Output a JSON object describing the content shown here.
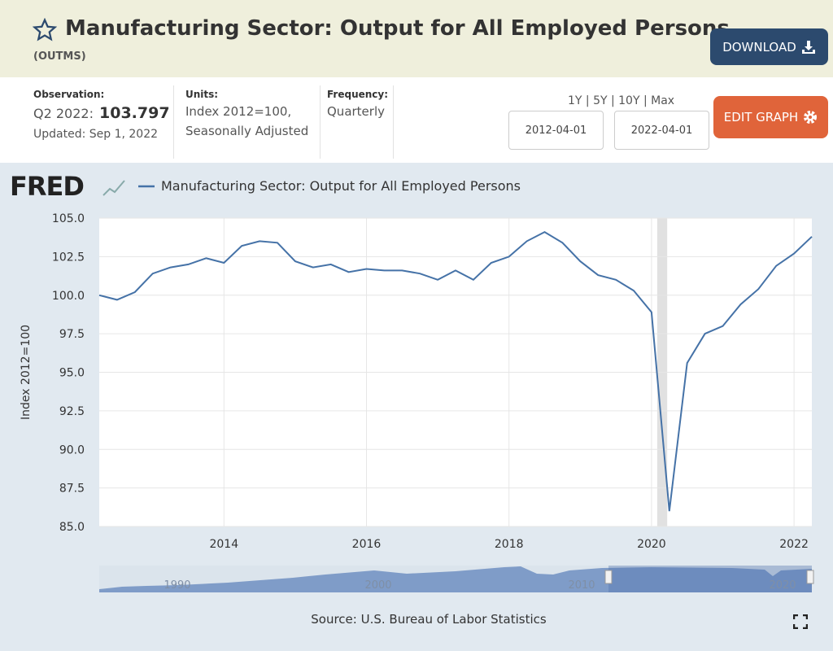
{
  "header": {
    "title": "Manufacturing Sector: Output for All Employed Persons",
    "series_id": "(OUTMS)",
    "download": "DOWNLOAD"
  },
  "info": {
    "observation_label": "Observation:",
    "observation_period": "Q2 2022:",
    "observation_value": "103.797",
    "updated": "Updated: Sep 1, 2022",
    "units_label": "Units:",
    "units_line1": "Index 2012=100,",
    "units_line2": "Seasonally Adjusted",
    "frequency_label": "Frequency:",
    "frequency": "Quarterly",
    "ranges": "1Y | 5Y | 10Y | Max",
    "start_date": "2012-04-01",
    "end_date": "2022-04-01",
    "edit_graph": "EDIT GRAPH"
  },
  "logo": "FRED",
  "chart_data": {
    "type": "line",
    "y_label": "Index 2012=100",
    "x": [
      2012.25,
      2012.5,
      2012.75,
      2013,
      2013.25,
      2013.5,
      2013.75,
      2014,
      2014.25,
      2014.5,
      2014.75,
      2015,
      2015.25,
      2015.5,
      2015.75,
      2016,
      2016.25,
      2016.5,
      2016.75,
      2017,
      2017.25,
      2017.5,
      2017.75,
      2018,
      2018.25,
      2018.5,
      2018.75,
      2019,
      2019.25,
      2019.5,
      2019.75,
      2020,
      2020.25,
      2020.5,
      2020.75,
      2021,
      2021.25,
      2021.5,
      2021.75,
      2022,
      2022.25
    ],
    "series": [
      {
        "name": "Manufacturing Sector: Output for All Employed Persons",
        "color": "#4572a7",
        "values": [
          100.0,
          99.7,
          100.2,
          101.4,
          101.8,
          102.0,
          102.4,
          102.1,
          103.2,
          103.5,
          103.4,
          102.2,
          101.8,
          102.0,
          101.5,
          101.7,
          101.6,
          101.6,
          101.4,
          101.0,
          101.6,
          101.0,
          102.1,
          102.5,
          103.5,
          104.1,
          103.4,
          102.2,
          101.3,
          101.0,
          100.3,
          98.9,
          86.0,
          95.6,
          97.5,
          98.0,
          99.4,
          100.4,
          101.9,
          102.7,
          103.797
        ]
      }
    ],
    "xlim": [
      2012.25,
      2022.25
    ],
    "xticks": [
      2014,
      2016,
      2018,
      2020,
      2022
    ],
    "ylim": [
      85,
      105
    ],
    "yticks": [
      {
        "value": 85,
        "label": "85.0"
      },
      {
        "value": 87.5,
        "label": "87.5"
      },
      {
        "value": 90,
        "label": "90.0"
      },
      {
        "value": 92.5,
        "label": "92.5"
      },
      {
        "value": 95,
        "label": "95.0"
      },
      {
        "value": 97.5,
        "label": "97.5"
      },
      {
        "value": 100,
        "label": "100.0"
      },
      {
        "value": 102.5,
        "label": "102.5"
      },
      {
        "value": 105,
        "label": "105.0"
      }
    ],
    "grid": true,
    "shaded_ranges": [
      [
        2020.08,
        2020.22
      ]
    ],
    "navigator_labels": [
      "1990",
      "2000",
      "2010",
      "2020"
    ],
    "source": "Source: U.S. Bureau of Labor Statistics"
  }
}
